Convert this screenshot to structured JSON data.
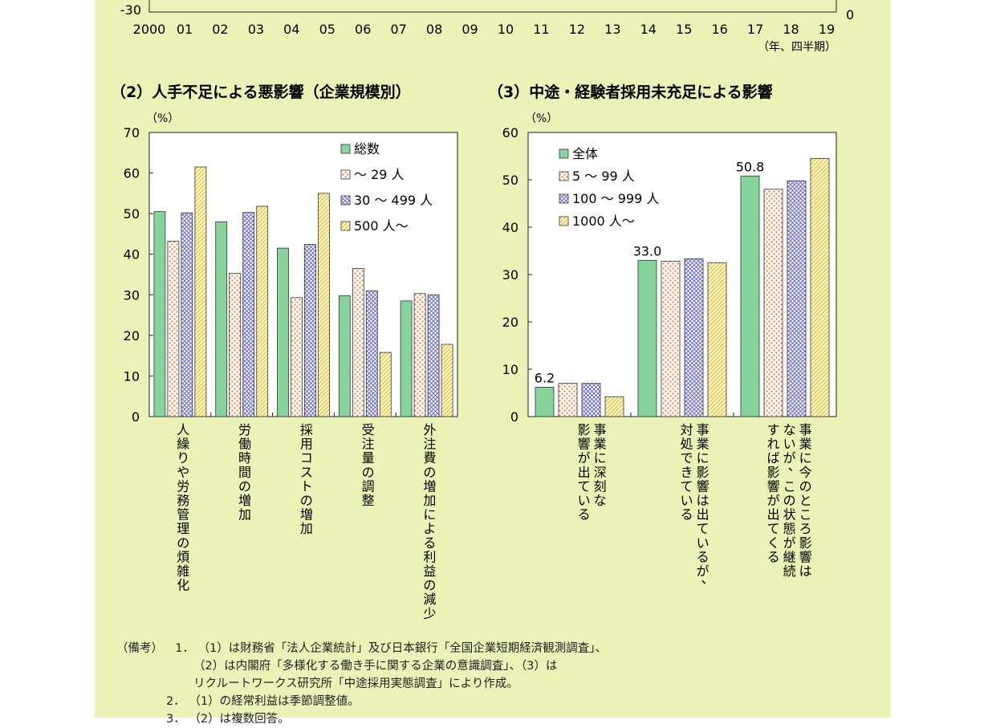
{
  "chart_data": [
    {
      "id": "panel1",
      "type": "line",
      "partial": true,
      "ylim_visible_bottom": -30,
      "left_tick_label": "-30",
      "right_tick_label": "0",
      "x_tick_labels": [
        "2000",
        "01",
        "02",
        "03",
        "04",
        "05",
        "06",
        "07",
        "08",
        "09",
        "10",
        "11",
        "12",
        "13",
        "14",
        "15",
        "16",
        "17",
        "18",
        "19"
      ],
      "x_unit": "（年、四半期）"
    },
    {
      "id": "panel2",
      "type": "bar",
      "title": "（2）人手不足による悪影響（企業規模別）",
      "y_unit": "（%）",
      "ylim": [
        0,
        70
      ],
      "y_ticks": [
        "0",
        "10",
        "20",
        "30",
        "40",
        "50",
        "60",
        "70"
      ],
      "categories": [
        "人繰りや労務管理の煩雑化",
        "労働時間の増加",
        "採用コストの増加",
        "受注量の調整",
        "外注費の増加による利益の減少"
      ],
      "series": [
        {
          "name": "総数",
          "color": "#86d49b",
          "pattern": "solid",
          "values": [
            50.5,
            48.0,
            41.5,
            29.8,
            28.5
          ]
        },
        {
          "name": "～ 29 人",
          "color": "#e99a6a",
          "pattern": "dots",
          "values": [
            43.2,
            35.3,
            29.3,
            36.5,
            30.3
          ]
        },
        {
          "name": "30 ～ 499 人",
          "color": "#7a7acc",
          "pattern": "cross",
          "values": [
            50.2,
            50.3,
            42.4,
            31.0,
            30.0
          ]
        },
        {
          "name": "500 人～",
          "color": "#e6d36a",
          "pattern": "hatch",
          "values": [
            61.5,
            51.8,
            55.0,
            15.8,
            17.8
          ]
        }
      ]
    },
    {
      "id": "panel3",
      "type": "bar",
      "title": "（3）中途・経験者採用未充足による影響",
      "y_unit": "（%）",
      "ylim": [
        0,
        60
      ],
      "y_ticks": [
        "0",
        "10",
        "20",
        "30",
        "40",
        "50",
        "60"
      ],
      "categories": [
        "事業に深刻な影響が出ている",
        "事業に影響は出ているが、対処できている",
        "事業に今のところ影響はないが、この状態が継続すれば影響が出てくる"
      ],
      "category_lines": [
        [
          "事業に深刻な",
          "影響が出ている"
        ],
        [
          "事業に影響は出ているが、",
          "対処できている"
        ],
        [
          "事業に今のところ影響は",
          "ないが、この状態が継続",
          "すれば影響が出てくる"
        ]
      ],
      "data_labels": [
        "6.2",
        "33.0",
        "50.8"
      ],
      "series": [
        {
          "name": "全体",
          "color": "#86d49b",
          "pattern": "solid",
          "values": [
            6.2,
            33.0,
            50.8
          ]
        },
        {
          "name": "5 ～ 99 人",
          "color": "#e99a6a",
          "pattern": "dots",
          "values": [
            7.0,
            32.8,
            48.0
          ]
        },
        {
          "name": "100 ～ 999 人",
          "color": "#7a7acc",
          "pattern": "cross",
          "values": [
            7.0,
            33.3,
            49.8
          ]
        },
        {
          "name": "1000 人～",
          "color": "#e6d36a",
          "pattern": "hatch",
          "values": [
            4.2,
            32.5,
            54.5
          ]
        }
      ]
    }
  ],
  "notes": {
    "label": "（備考）",
    "items": [
      {
        "num": "1．",
        "lines": [
          "（1）は財務省「法人企業統計」及び日本銀行「全国企業短期経済観測調査」、",
          "（2）は内閣府「多様化する働き手に関する企業の意識調査」、（3）は",
          "リクルートワークス研究所「中途採用実態調査」により作成。"
        ]
      },
      {
        "num": "2．",
        "lines": [
          "（1）の経常利益は季節調整値。"
        ]
      },
      {
        "num": "3．",
        "lines": [
          "（2）は複数回答。"
        ]
      }
    ]
  }
}
